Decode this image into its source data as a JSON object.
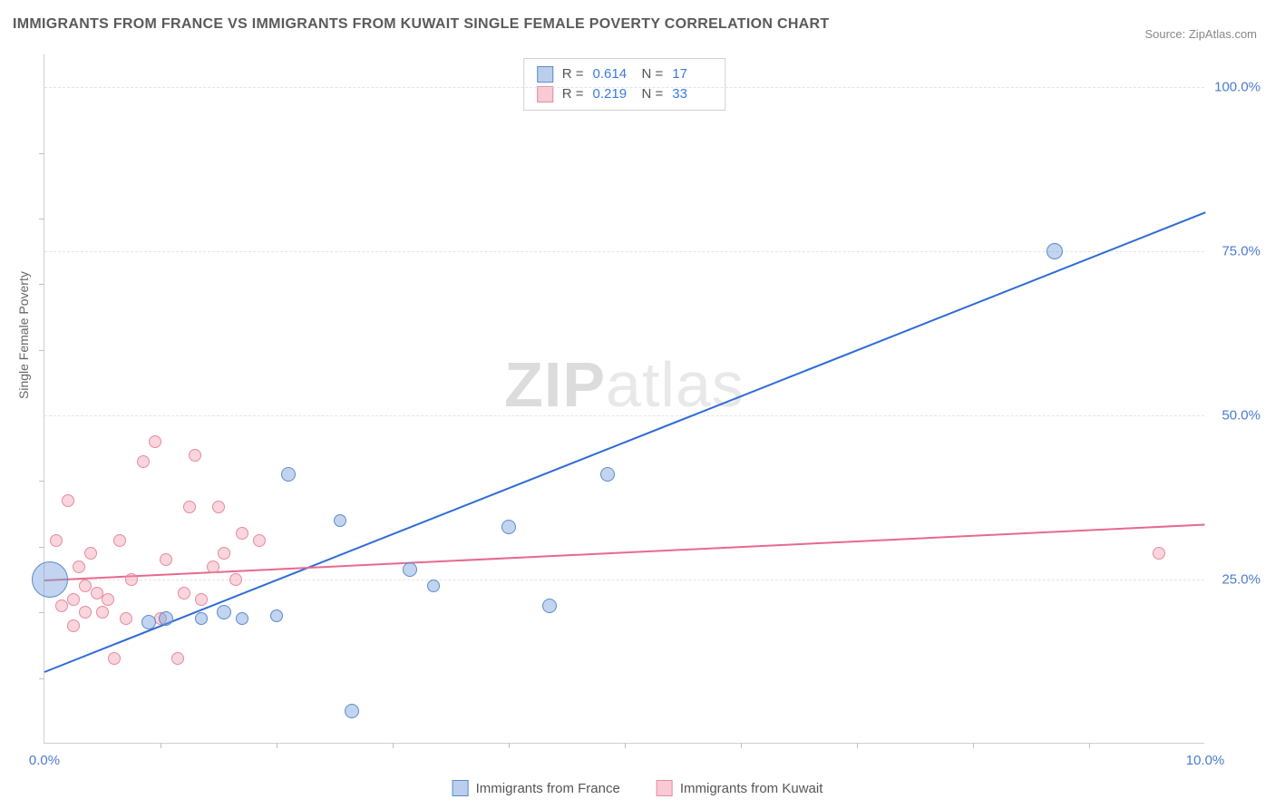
{
  "title": "IMMIGRANTS FROM FRANCE VS IMMIGRANTS FROM KUWAIT SINGLE FEMALE POVERTY CORRELATION CHART",
  "source": "Source: ZipAtlas.com",
  "watermark_a": "ZIP",
  "watermark_b": "atlas",
  "ylabel": "Single Female Poverty",
  "chart": {
    "type": "scatter-with-trend",
    "xlim": [
      0,
      10
    ],
    "ylim": [
      0,
      105
    ],
    "xticks": [
      0,
      10
    ],
    "xtick_labels": [
      "0.0%",
      "10.0%"
    ],
    "xminor": [
      1,
      2,
      3,
      4,
      5,
      6,
      7,
      8,
      9
    ],
    "yticks": [
      25,
      50,
      75,
      100
    ],
    "ytick_labels": [
      "25.0%",
      "50.0%",
      "75.0%",
      "100.0%"
    ],
    "yminor": [
      10,
      20,
      30,
      40,
      60,
      70,
      80,
      90
    ],
    "grid_color": "#e4e4e4",
    "background_color": "#ffffff",
    "axis_color": "#d0d0d0",
    "series": [
      {
        "name": "Immigrants from France",
        "color_fill": "rgba(120,160,220,0.45)",
        "color_stroke": "#5a8bd0",
        "trend_color": "#2e6bd6",
        "R": "0.614",
        "N": "17",
        "trend": {
          "x1": 0,
          "y1": 11,
          "x2": 10,
          "y2": 81
        },
        "points": [
          {
            "x": 0.05,
            "y": 25,
            "r": 20
          },
          {
            "x": 0.9,
            "y": 18.5,
            "r": 8
          },
          {
            "x": 1.05,
            "y": 19,
            "r": 8
          },
          {
            "x": 1.35,
            "y": 19,
            "r": 7
          },
          {
            "x": 1.55,
            "y": 20,
            "r": 8
          },
          {
            "x": 1.7,
            "y": 19,
            "r": 7
          },
          {
            "x": 2.0,
            "y": 19.5,
            "r": 7
          },
          {
            "x": 2.1,
            "y": 41,
            "r": 8
          },
          {
            "x": 2.55,
            "y": 34,
            "r": 7
          },
          {
            "x": 2.65,
            "y": 5,
            "r": 8
          },
          {
            "x": 3.15,
            "y": 26.5,
            "r": 8
          },
          {
            "x": 3.35,
            "y": 24,
            "r": 7
          },
          {
            "x": 4.0,
            "y": 33,
            "r": 8
          },
          {
            "x": 4.35,
            "y": 21,
            "r": 8
          },
          {
            "x": 4.85,
            "y": 41,
            "r": 8
          },
          {
            "x": 8.7,
            "y": 75,
            "r": 9
          }
        ]
      },
      {
        "name": "Immigrants from Kuwait",
        "color_fill": "rgba(240,150,170,0.4)",
        "color_stroke": "#e88aa0",
        "trend_color": "#e66a8c",
        "R": "0.219",
        "N": "33",
        "trend": {
          "x1": 0,
          "y1": 25,
          "x2": 10,
          "y2": 33.5
        },
        "points": [
          {
            "x": 0.1,
            "y": 31,
            "r": 7
          },
          {
            "x": 0.15,
            "y": 21,
            "r": 7
          },
          {
            "x": 0.2,
            "y": 37,
            "r": 7
          },
          {
            "x": 0.25,
            "y": 22,
            "r": 7
          },
          {
            "x": 0.25,
            "y": 18,
            "r": 7
          },
          {
            "x": 0.3,
            "y": 27,
            "r": 7
          },
          {
            "x": 0.35,
            "y": 24,
            "r": 7
          },
          {
            "x": 0.35,
            "y": 20,
            "r": 7
          },
          {
            "x": 0.4,
            "y": 29,
            "r": 7
          },
          {
            "x": 0.45,
            "y": 23,
            "r": 7
          },
          {
            "x": 0.5,
            "y": 20,
            "r": 7
          },
          {
            "x": 0.55,
            "y": 22,
            "r": 7
          },
          {
            "x": 0.6,
            "y": 13,
            "r": 7
          },
          {
            "x": 0.65,
            "y": 31,
            "r": 7
          },
          {
            "x": 0.7,
            "y": 19,
            "r": 7
          },
          {
            "x": 0.75,
            "y": 25,
            "r": 7
          },
          {
            "x": 0.85,
            "y": 43,
            "r": 7
          },
          {
            "x": 0.95,
            "y": 46,
            "r": 7
          },
          {
            "x": 1.0,
            "y": 19,
            "r": 7
          },
          {
            "x": 1.05,
            "y": 28,
            "r": 7
          },
          {
            "x": 1.15,
            "y": 13,
            "r": 7
          },
          {
            "x": 1.2,
            "y": 23,
            "r": 7
          },
          {
            "x": 1.25,
            "y": 36,
            "r": 7
          },
          {
            "x": 1.3,
            "y": 44,
            "r": 7
          },
          {
            "x": 1.35,
            "y": 22,
            "r": 7
          },
          {
            "x": 1.45,
            "y": 27,
            "r": 7
          },
          {
            "x": 1.5,
            "y": 36,
            "r": 7
          },
          {
            "x": 1.55,
            "y": 29,
            "r": 7
          },
          {
            "x": 1.65,
            "y": 25,
            "r": 7
          },
          {
            "x": 1.7,
            "y": 32,
            "r": 7
          },
          {
            "x": 1.85,
            "y": 31,
            "r": 7
          },
          {
            "x": 9.6,
            "y": 29,
            "r": 7
          }
        ]
      }
    ]
  },
  "legend": {
    "r_label": "R =",
    "n_label": "N ="
  }
}
